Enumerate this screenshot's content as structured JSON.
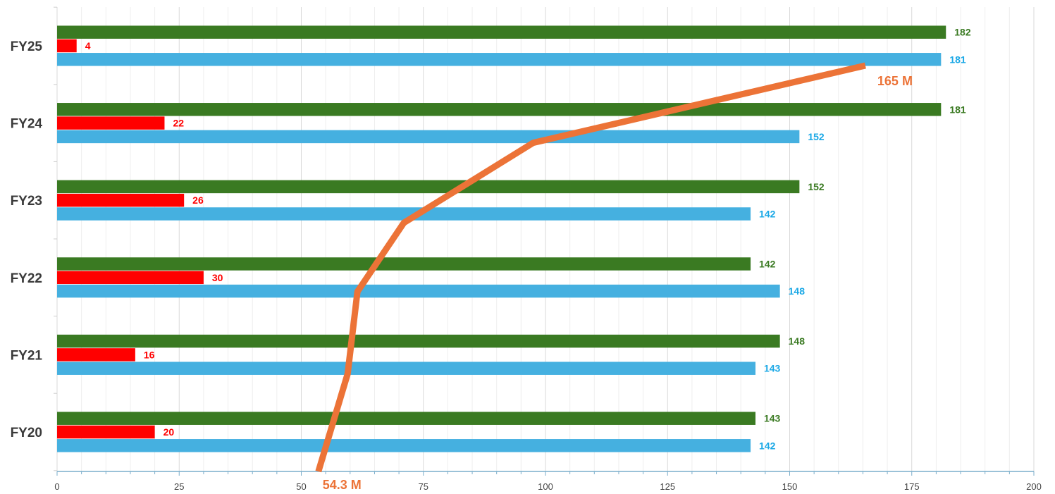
{
  "chart_data": {
    "type": "bar",
    "orientation": "horizontal",
    "categories": [
      "FY25",
      "FY24",
      "FY23",
      "FY22",
      "FY21",
      "FY20"
    ],
    "series": [
      {
        "color": "#3a7a22",
        "values": [
          182,
          181,
          152,
          142,
          148,
          143
        ]
      },
      {
        "color": "#ff0000",
        "values": [
          4,
          22,
          26,
          30,
          16,
          20
        ]
      },
      {
        "color": "#45b0e0",
        "values": [
          181,
          152,
          142,
          148,
          143,
          142
        ]
      }
    ],
    "label_colors": [
      "#3a7a22",
      "#ff0000",
      "#1aa8e6"
    ],
    "line": {
      "color": "#ec7337",
      "points": [
        {
          "x": 53.5,
          "y": "FY20 bottom"
        },
        {
          "x": 59.5,
          "y": "FY21"
        },
        {
          "x": 61.5,
          "y": "FY22"
        },
        {
          "x": 71,
          "y": "FY23"
        },
        {
          "x": 97.5,
          "y": "FY24"
        },
        {
          "x": 165.5,
          "y": "FY25"
        }
      ],
      "annotations": [
        {
          "text": "54.3 M",
          "at": "start"
        },
        {
          "text": "165 M",
          "at": "end"
        }
      ]
    },
    "xlim": [
      0,
      200
    ],
    "xticks": [
      0,
      25,
      50,
      75,
      100,
      125,
      150,
      175,
      200
    ],
    "grid": true,
    "legend": "none",
    "title": "",
    "xlabel": "",
    "ylabel": ""
  }
}
